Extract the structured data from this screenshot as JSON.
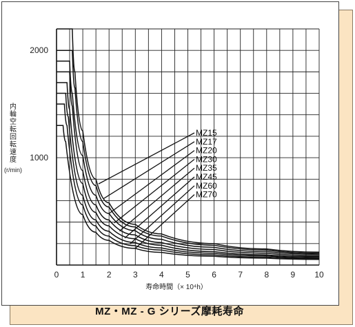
{
  "caption": "MZ・MZ - G シリーズ摩耗寿命",
  "chart_data": {
    "type": "line",
    "ylabel": "内輪空転回転速度",
    "yunit": "(r/min)",
    "xlabel": "寿命時間（× 10⁴h）",
    "xlim": [
      0,
      10
    ],
    "ylim": [
      0,
      2200
    ],
    "xticks": [
      "0",
      "1",
      "2",
      "3",
      "4",
      "5",
      "6",
      "7",
      "8",
      "9",
      "10"
    ],
    "yticks": [
      {
        "value": 1000,
        "label": "1000"
      },
      {
        "value": 2000,
        "label": "2000"
      }
    ],
    "grid": true,
    "legend": "labels with leader lines, center-right",
    "series": [
      {
        "name": "MZ15",
        "max_speed": 2200,
        "x": [
          0.6,
          0.7,
          1.0,
          1.5,
          2.0,
          3.0,
          4.0,
          6.0,
          8.0,
          10.0
        ],
        "y": [
          2200,
          1800,
          1250,
          800,
          580,
          380,
          290,
          200,
          150,
          120
        ]
      },
      {
        "name": "MZ17",
        "max_speed": 2000,
        "x": [
          0.6,
          0.7,
          1.0,
          1.5,
          2.0,
          3.0,
          4.0,
          6.0,
          8.0,
          10.0
        ],
        "y": [
          2000,
          1650,
          1150,
          740,
          540,
          355,
          270,
          185,
          140,
          110
        ]
      },
      {
        "name": "MZ20",
        "max_speed": 1900,
        "x": [
          0.5,
          0.6,
          1.0,
          1.5,
          2.0,
          3.0,
          4.0,
          6.0,
          8.0,
          10.0
        ],
        "y": [
          1900,
          1600,
          1020,
          650,
          480,
          320,
          240,
          165,
          125,
          100
        ]
      },
      {
        "name": "MZ30",
        "max_speed": 1800,
        "x": [
          0.5,
          0.6,
          1.0,
          1.5,
          2.0,
          3.0,
          4.0,
          6.0,
          8.0,
          10.0
        ],
        "y": [
          1800,
          1480,
          880,
          560,
          420,
          280,
          210,
          145,
          110,
          88
        ]
      },
      {
        "name": "MZ35",
        "max_speed": 1700,
        "x": [
          0.4,
          0.5,
          1.0,
          1.5,
          2.0,
          3.0,
          4.0,
          6.0,
          8.0,
          10.0
        ],
        "y": [
          1700,
          1450,
          760,
          490,
          365,
          245,
          185,
          125,
          95,
          78
        ]
      },
      {
        "name": "MZ45",
        "max_speed": 1600,
        "x": [
          0.35,
          0.45,
          1.0,
          1.5,
          2.0,
          3.0,
          4.0,
          6.0,
          8.0,
          10.0
        ],
        "y": [
          1600,
          1380,
          650,
          420,
          315,
          210,
          160,
          110,
          85,
          68
        ]
      },
      {
        "name": "MZ60",
        "max_speed": 1500,
        "x": [
          0.3,
          0.4,
          1.0,
          1.5,
          2.0,
          3.0,
          4.0,
          6.0,
          8.0,
          10.0
        ],
        "y": [
          1500,
          1300,
          560,
          365,
          270,
          180,
          140,
          95,
          74,
          60
        ]
      },
      {
        "name": "MZ70",
        "max_speed": 1300,
        "x": [
          0.25,
          0.35,
          1.0,
          1.5,
          2.0,
          3.0,
          4.0,
          6.0,
          8.0,
          10.0
        ],
        "y": [
          1300,
          1150,
          470,
          305,
          230,
          155,
          118,
          82,
          64,
          52
        ]
      }
    ]
  }
}
